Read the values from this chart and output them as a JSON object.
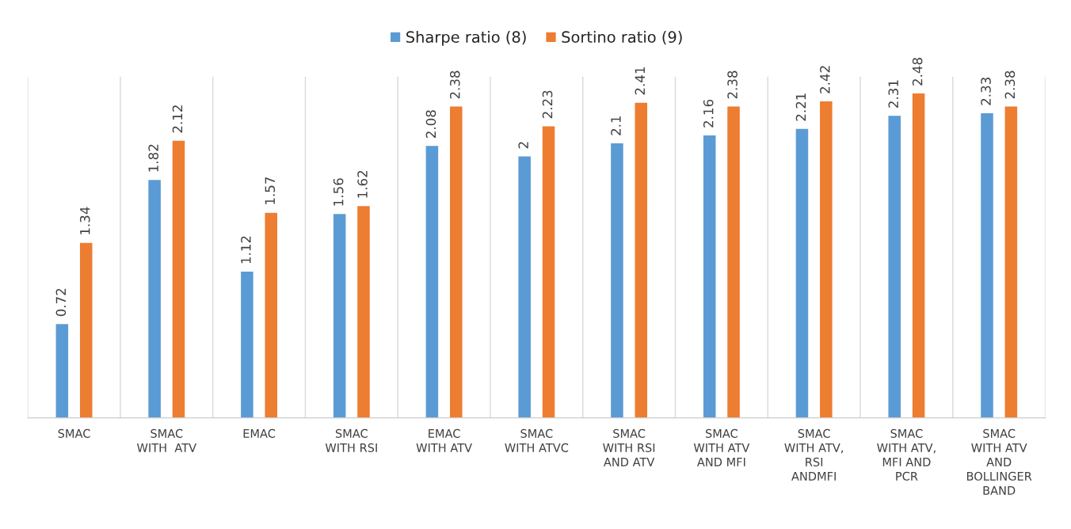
{
  "chart_data": {
    "type": "bar",
    "categories": [
      "SMAC",
      "SMAC\nWITH  ATV",
      "EMAC",
      "SMAC\nWITH RSI",
      "EMAC\nWITH ATV",
      "SMAC\nWITH ATVC",
      "SMAC\nWITH RSI\nAND ATV",
      "SMAC\nWITH ATV\nAND MFI",
      "SMAC\nWITH ATV,\nRSI\nANDMFI",
      "SMAC\nWITH ATV,\nMFI AND\nPCR",
      "SMAC\nWITH ATV\nAND\nBOLLINGER\nBAND"
    ],
    "series": [
      {
        "name": "Sharpe ratio (8)",
        "color": "#5b9bd5",
        "values": [
          0.72,
          1.82,
          1.12,
          1.56,
          2.08,
          2,
          2.1,
          2.16,
          2.21,
          2.31,
          2.33
        ]
      },
      {
        "name": "Sortino ratio (9)",
        "color": "#ed7d31",
        "values": [
          1.34,
          2.12,
          1.57,
          1.62,
          2.38,
          2.23,
          2.41,
          2.38,
          2.42,
          2.48,
          2.38
        ]
      }
    ],
    "data_labels": true,
    "grid": "x",
    "legend": "top"
  }
}
